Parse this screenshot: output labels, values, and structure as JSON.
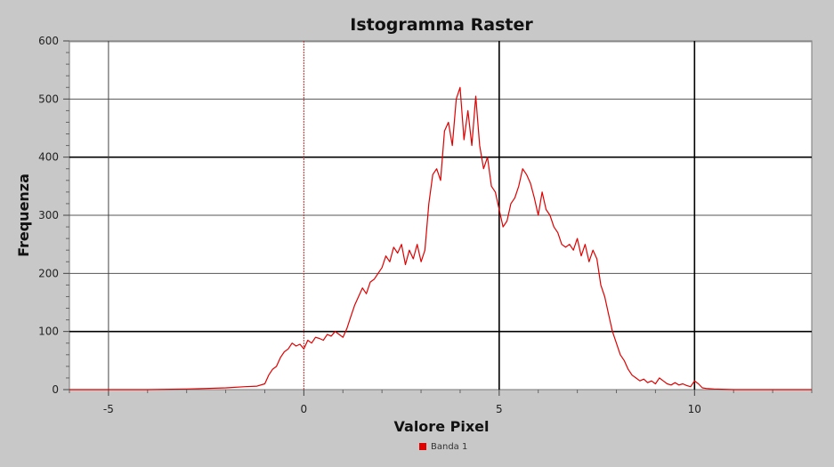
{
  "chart_data": {
    "type": "line",
    "title": "Istogramma Raster",
    "xlabel": "Valore Pixel",
    "ylabel": "Frequenza",
    "xlim": [
      -6,
      13
    ],
    "ylim": [
      0,
      600
    ],
    "x_ticks": [
      -5,
      0,
      5,
      10
    ],
    "y_ticks": [
      0,
      100,
      200,
      300,
      400,
      500,
      600
    ],
    "grid": true,
    "legend_position": "bottom-center",
    "series": [
      {
        "name": "Banda 1",
        "color": "#e00000",
        "x": [
          -6.0,
          -5.0,
          -4.0,
          -3.0,
          -2.5,
          -2.0,
          -1.5,
          -1.2,
          -1.0,
          -0.9,
          -0.8,
          -0.7,
          -0.6,
          -0.5,
          -0.4,
          -0.3,
          -0.2,
          -0.1,
          0.0,
          0.1,
          0.2,
          0.3,
          0.4,
          0.5,
          0.6,
          0.7,
          0.8,
          0.9,
          1.0,
          1.1,
          1.2,
          1.3,
          1.4,
          1.5,
          1.6,
          1.7,
          1.8,
          1.9,
          2.0,
          2.1,
          2.2,
          2.3,
          2.4,
          2.5,
          2.6,
          2.7,
          2.8,
          2.9,
          3.0,
          3.1,
          3.2,
          3.3,
          3.4,
          3.5,
          3.6,
          3.7,
          3.8,
          3.9,
          4.0,
          4.1,
          4.2,
          4.3,
          4.4,
          4.5,
          4.6,
          4.7,
          4.8,
          4.9,
          5.0,
          5.1,
          5.2,
          5.3,
          5.4,
          5.5,
          5.6,
          5.7,
          5.8,
          5.9,
          6.0,
          6.1,
          6.2,
          6.3,
          6.4,
          6.5,
          6.6,
          6.7,
          6.8,
          6.9,
          7.0,
          7.1,
          7.2,
          7.3,
          7.4,
          7.5,
          7.6,
          7.7,
          7.8,
          7.9,
          8.0,
          8.1,
          8.2,
          8.3,
          8.4,
          8.5,
          8.6,
          8.7,
          8.8,
          8.9,
          9.0,
          9.1,
          9.2,
          9.3,
          9.4,
          9.5,
          9.6,
          9.7,
          9.8,
          9.9,
          10.0,
          10.1,
          10.2,
          10.3,
          10.5,
          11.0,
          12.0,
          13.0
        ],
        "values": [
          0,
          0,
          0,
          1,
          2,
          3,
          5,
          6,
          10,
          25,
          35,
          40,
          55,
          65,
          70,
          80,
          75,
          78,
          70,
          85,
          80,
          90,
          88,
          85,
          95,
          92,
          100,
          95,
          90,
          105,
          125,
          145,
          160,
          175,
          165,
          185,
          190,
          200,
          210,
          230,
          220,
          245,
          235,
          250,
          215,
          240,
          225,
          250,
          220,
          240,
          320,
          370,
          380,
          360,
          445,
          460,
          420,
          500,
          520,
          430,
          480,
          420,
          505,
          420,
          380,
          400,
          350,
          340,
          310,
          280,
          290,
          320,
          330,
          350,
          380,
          370,
          355,
          330,
          300,
          340,
          310,
          300,
          280,
          270,
          250,
          245,
          250,
          240,
          260,
          230,
          250,
          220,
          240,
          225,
          180,
          160,
          130,
          100,
          80,
          60,
          50,
          35,
          25,
          20,
          15,
          18,
          12,
          15,
          10,
          20,
          15,
          10,
          8,
          12,
          8,
          10,
          7,
          5,
          15,
          10,
          3,
          2,
          1,
          0,
          0,
          0
        ]
      }
    ]
  }
}
